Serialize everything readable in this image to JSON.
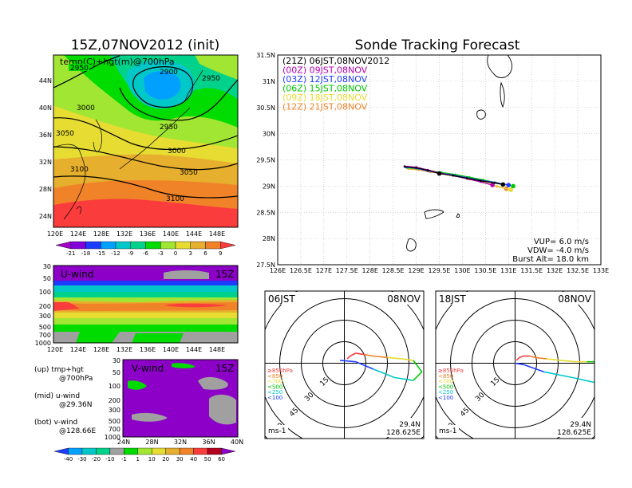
{
  "left_panel": {
    "title": "15Z,07NOV2012 (init)",
    "map_label": "temp(C)+hgt(m)@700hPa",
    "lat_labels": [
      "44N",
      "40N",
      "36N",
      "32N",
      "28N",
      "24N"
    ],
    "lon_labels": [
      "120E",
      "124E",
      "128E",
      "132E",
      "136E",
      "140E",
      "144E",
      "148E"
    ],
    "contour_labels": [
      "2950",
      "2900",
      "2950",
      "3000",
      "3050",
      "2950",
      "3000",
      "3050",
      "3100",
      "3100"
    ],
    "temp_colorbar": {
      "labels": [
        "-21",
        "-18",
        "-15",
        "-12",
        "-9",
        "-6",
        "-3",
        "0",
        "3",
        "6",
        "9"
      ],
      "colors": [
        "#a000c8",
        "#8200dc",
        "#1e3cff",
        "#00a0ff",
        "#00c8c8",
        "#00d28c",
        "#00dc00",
        "#a0e632",
        "#e6dc32",
        "#e6af2d",
        "#f08228",
        "#fa3c3c"
      ]
    }
  },
  "u_wind": {
    "label": "U-wind",
    "time": "15Z",
    "pressure_labels": [
      "30",
      "50",
      "100",
      "200",
      "300",
      "500",
      "700",
      "1000"
    ],
    "lon_labels": [
      "120E",
      "124E",
      "128E",
      "132E",
      "136E",
      "140E",
      "144E",
      "148E"
    ]
  },
  "v_wind": {
    "label": "V-wind",
    "time": "15Z",
    "pressure_labels": [
      "30",
      "50",
      "100",
      "200",
      "300",
      "500",
      "700",
      "1000"
    ],
    "lat_labels": [
      "24N",
      "28N",
      "32N",
      "36N",
      "40N"
    ]
  },
  "notes": [
    {
      "line1": "(up) tmp+hgt",
      "line2": "@700hPa"
    },
    {
      "line1": "(mid) u-wind",
      "line2": "@29.36N"
    },
    {
      "line1": "(bot) v-wind",
      "line2": "@128.66E"
    }
  ],
  "wind_colorbar": {
    "labels": [
      "-40",
      "-30",
      "-20",
      "-10",
      "-1",
      "1",
      "10",
      "20",
      "30",
      "40",
      "50",
      "60"
    ],
    "colors": [
      "#1e3cff",
      "#00a0ff",
      "#00c8c8",
      "#00d28c",
      "#a0a0a0",
      "#00dc00",
      "#a0e632",
      "#e6dc32",
      "#e6af2d",
      "#f08228",
      "#fa3c3c",
      "#b4001e",
      "#8c00c8"
    ]
  },
  "main_chart": {
    "title": "Sonde Tracking Forecast",
    "lat_labels": [
      "31.5N",
      "31N",
      "30.5N",
      "30N",
      "29.5N",
      "29N",
      "28.5N",
      "28N",
      "27.5N"
    ],
    "lon_labels": [
      "126E",
      "126.5E",
      "127E",
      "127.5E",
      "128E",
      "128.5E",
      "129E",
      "129.5E",
      "130E",
      "130.5E",
      "131E",
      "131.5E",
      "132E",
      "132.5E",
      "133E"
    ],
    "legend": [
      {
        "label": "(21Z)  06JST,08NOV2012",
        "color": "#000000"
      },
      {
        "label": "(00Z)  09JST,08NOV",
        "color": "#b400b4"
      },
      {
        "label": "(03Z)  12JST,08NOV",
        "color": "#1e3cff"
      },
      {
        "label": "(06Z)  15JST,08NOV",
        "color": "#00c800"
      },
      {
        "label": "(09Z)  18JST,08NOV",
        "color": "#e6dc32"
      },
      {
        "label": "(12Z)  21JST,08NOV",
        "color": "#f08228"
      }
    ],
    "params": [
      "VUP=  6.0  m/s",
      "VDW=  -4.0  m/s",
      "Burst Alt=  18.0  km"
    ]
  },
  "chart_data": {
    "type": "line",
    "title": "Sonde Tracking Forecast",
    "xlim": [
      126,
      133
    ],
    "ylim": [
      27.5,
      31.5
    ],
    "launch_point": {
      "lon": 129.5,
      "lat": 29.24
    },
    "series": [
      {
        "name": "(21Z) 06JST,08NOV2012",
        "x": [
          128.75,
          129.0,
          129.25,
          129.5,
          129.8,
          130.1,
          130.4,
          130.7,
          130.88
        ],
        "y": [
          29.37,
          29.35,
          29.3,
          29.24,
          29.2,
          29.15,
          29.1,
          29.06,
          29.03
        ]
      },
      {
        "name": "(00Z) 09JST,08NOV",
        "x": [
          128.75,
          129.0,
          129.25,
          129.5,
          129.8,
          130.1,
          130.4,
          130.65
        ],
        "y": [
          29.38,
          29.36,
          29.31,
          29.25,
          29.2,
          29.14,
          29.08,
          29.02
        ]
      },
      {
        "name": "(03Z) 12JST,08NOV",
        "x": [
          128.78,
          129.0,
          129.25,
          129.5,
          129.8,
          130.1,
          130.4,
          130.7,
          131.0
        ],
        "y": [
          29.36,
          29.34,
          29.29,
          29.25,
          29.21,
          29.16,
          29.11,
          29.07,
          29.02
        ]
      },
      {
        "name": "(06Z) 15JST,08NOV",
        "x": [
          128.8,
          129.05,
          129.3,
          129.55,
          129.85,
          130.15,
          130.45,
          130.75,
          131.1
        ],
        "y": [
          29.35,
          29.33,
          29.29,
          29.26,
          29.22,
          29.17,
          29.12,
          29.06,
          29.0
        ]
      },
      {
        "name": "(09Z) 18JST,08NOV",
        "x": [
          128.82,
          129.05,
          129.3,
          129.55,
          129.85,
          130.15,
          130.45,
          130.75,
          131.05
        ],
        "y": [
          29.34,
          29.32,
          29.28,
          29.25,
          29.2,
          29.15,
          29.08,
          29.0,
          28.93
        ]
      },
      {
        "name": "(12Z) 21JST,08NOV",
        "x": [
          128.83,
          129.05,
          129.3,
          129.55,
          129.85,
          130.15,
          130.45,
          130.75,
          130.95
        ],
        "y": [
          29.33,
          29.31,
          29.27,
          29.24,
          29.19,
          29.13,
          29.07,
          28.99,
          28.95
        ]
      }
    ]
  },
  "hodographs": [
    {
      "time": "06JST",
      "date": "08NOV",
      "lat": "29.4N",
      "lon": "128.625E",
      "unit": "ms-1",
      "ring_labels": [
        "15",
        "30",
        "45",
        "60"
      ],
      "levels": [
        {
          "label": "≥850hPa",
          "color": "#fa3c3c"
        },
        {
          "label": "<850",
          "color": "#f08228"
        },
        {
          "label": "<700",
          "color": "#e6dc32"
        },
        {
          "label": "<500",
          "color": "#00c800"
        },
        {
          "label": "<250",
          "color": "#00c8c8"
        },
        {
          "label": "<100",
          "color": "#1e3cff"
        }
      ],
      "wind_u": [
        2,
        4,
        8,
        14,
        20,
        30,
        40,
        48,
        54,
        48,
        35,
        20,
        8,
        -3
      ],
      "wind_v": [
        3,
        5,
        7,
        6,
        5,
        4,
        3,
        2,
        -6,
        -12,
        -10,
        -4,
        1,
        2
      ]
    },
    {
      "time": "18JST",
      "date": "08NOV",
      "lat": "29.4N",
      "lon": "128.625E",
      "unit": "ms-1",
      "ring_labels": [
        "15",
        "30",
        "45",
        "60"
      ],
      "levels": [
        {
          "label": "≥850hPa",
          "color": "#fa3c3c"
        },
        {
          "label": "<850",
          "color": "#f08228"
        },
        {
          "label": "<700",
          "color": "#e6dc32"
        },
        {
          "label": "<500",
          "color": "#00c800"
        },
        {
          "label": "<250",
          "color": "#00c8c8"
        },
        {
          "label": "<100",
          "color": "#1e3cff"
        }
      ],
      "wind_u": [
        1,
        3,
        6,
        10,
        14,
        22,
        32,
        42,
        50,
        58,
        60,
        58,
        40,
        20,
        6,
        0
      ],
      "wind_v": [
        2,
        4,
        5,
        5,
        4,
        3,
        2,
        1,
        1,
        1,
        -4,
        -14,
        -10,
        -6,
        -1,
        0
      ]
    }
  ]
}
